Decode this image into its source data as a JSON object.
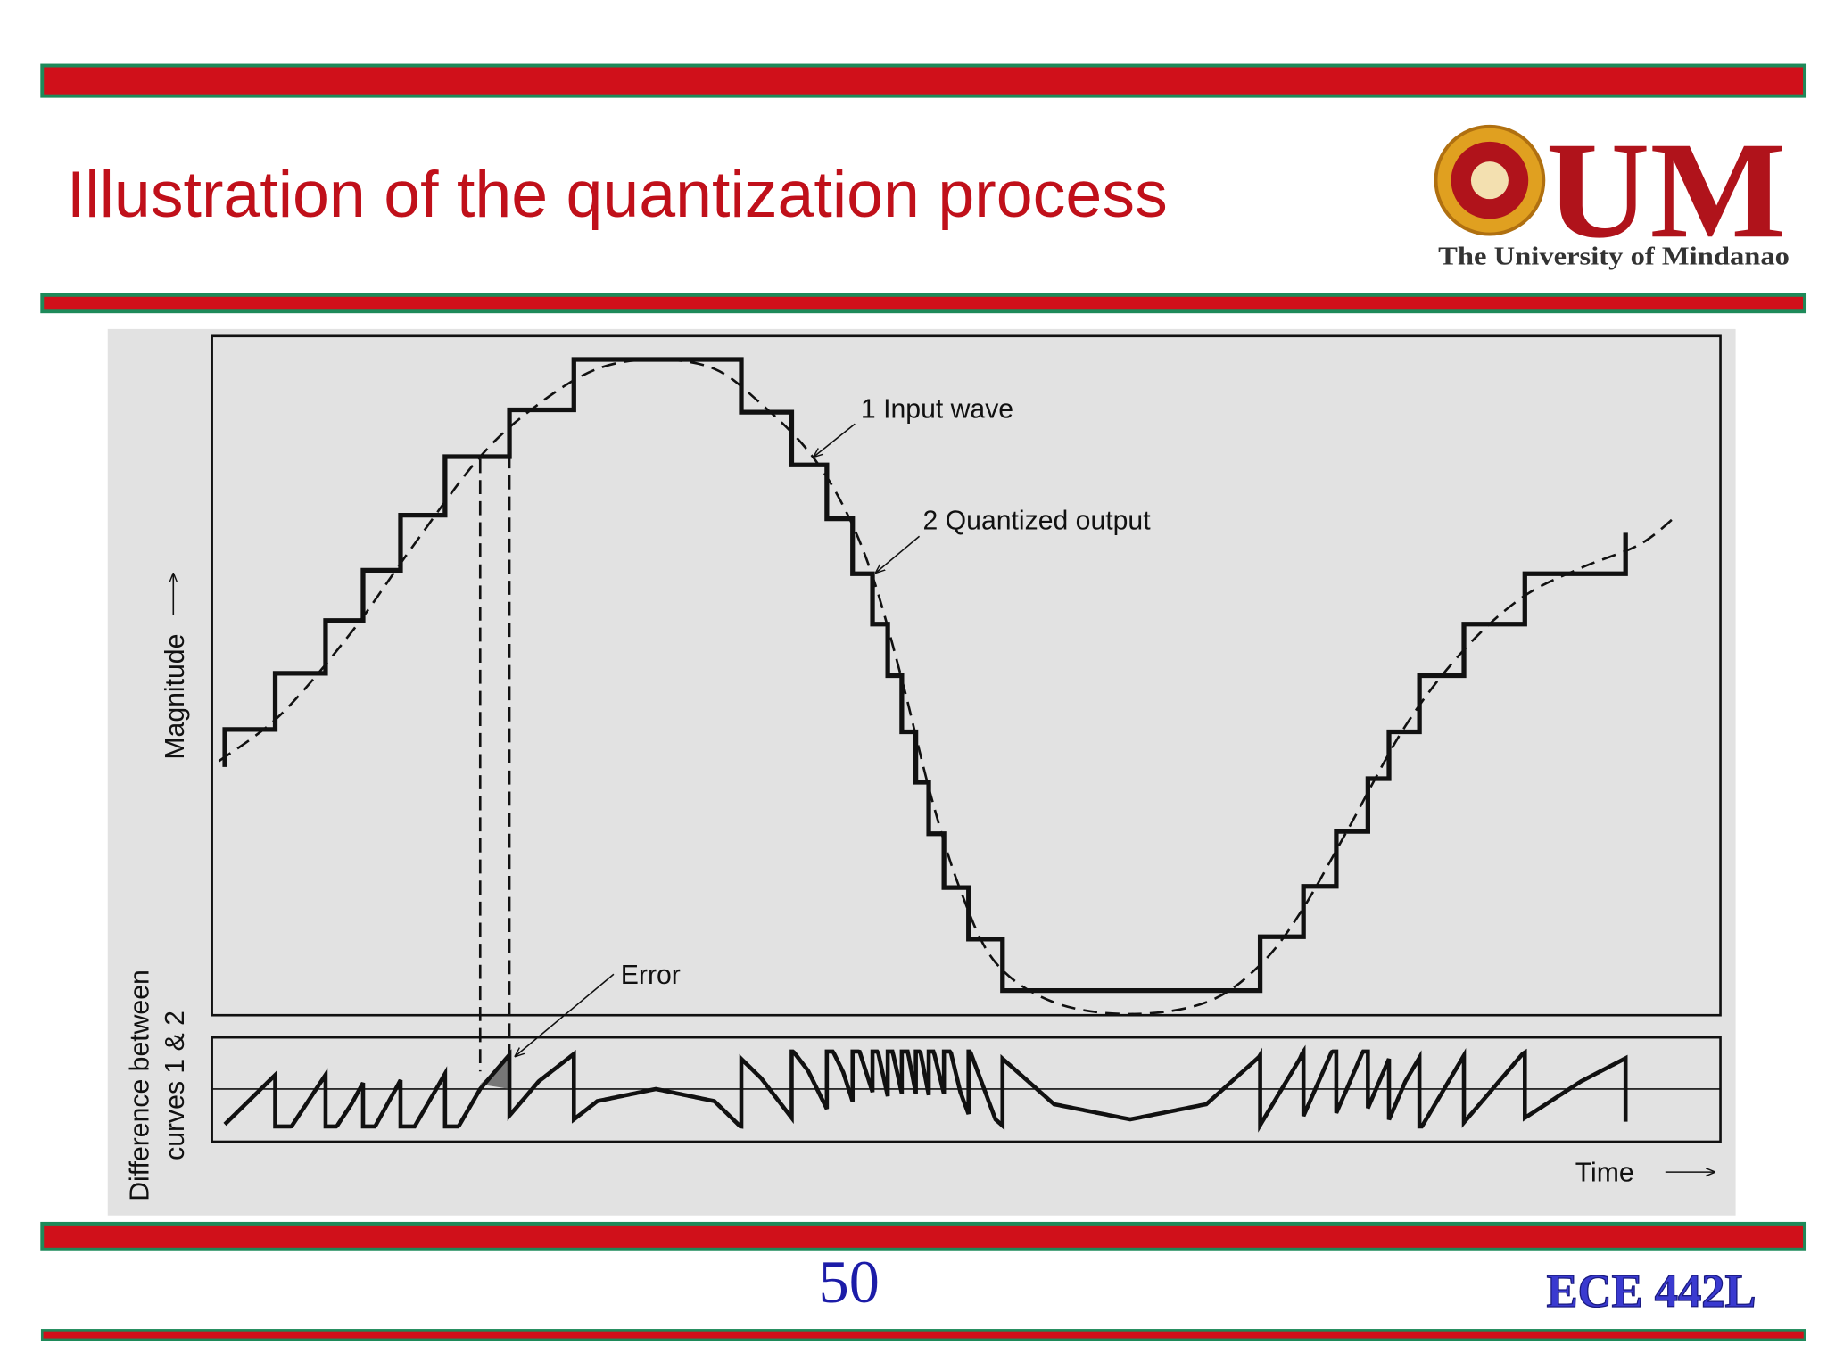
{
  "header": {
    "title": "Illustration of the quantization process",
    "logo": {
      "mark": "UM",
      "name": "The University of Mindanao"
    }
  },
  "diagram": {
    "labels": {
      "input_wave": "1 Input wave",
      "quantized_output": "2 Quantized output",
      "error": "Error",
      "y_axis_upper": "Magnitude",
      "y_axis_lower": [
        "Difference between",
        "curves 1 & 2"
      ],
      "x_axis": "Time"
    }
  },
  "footer": {
    "page_number": 50,
    "course": "ECE 442L"
  }
}
